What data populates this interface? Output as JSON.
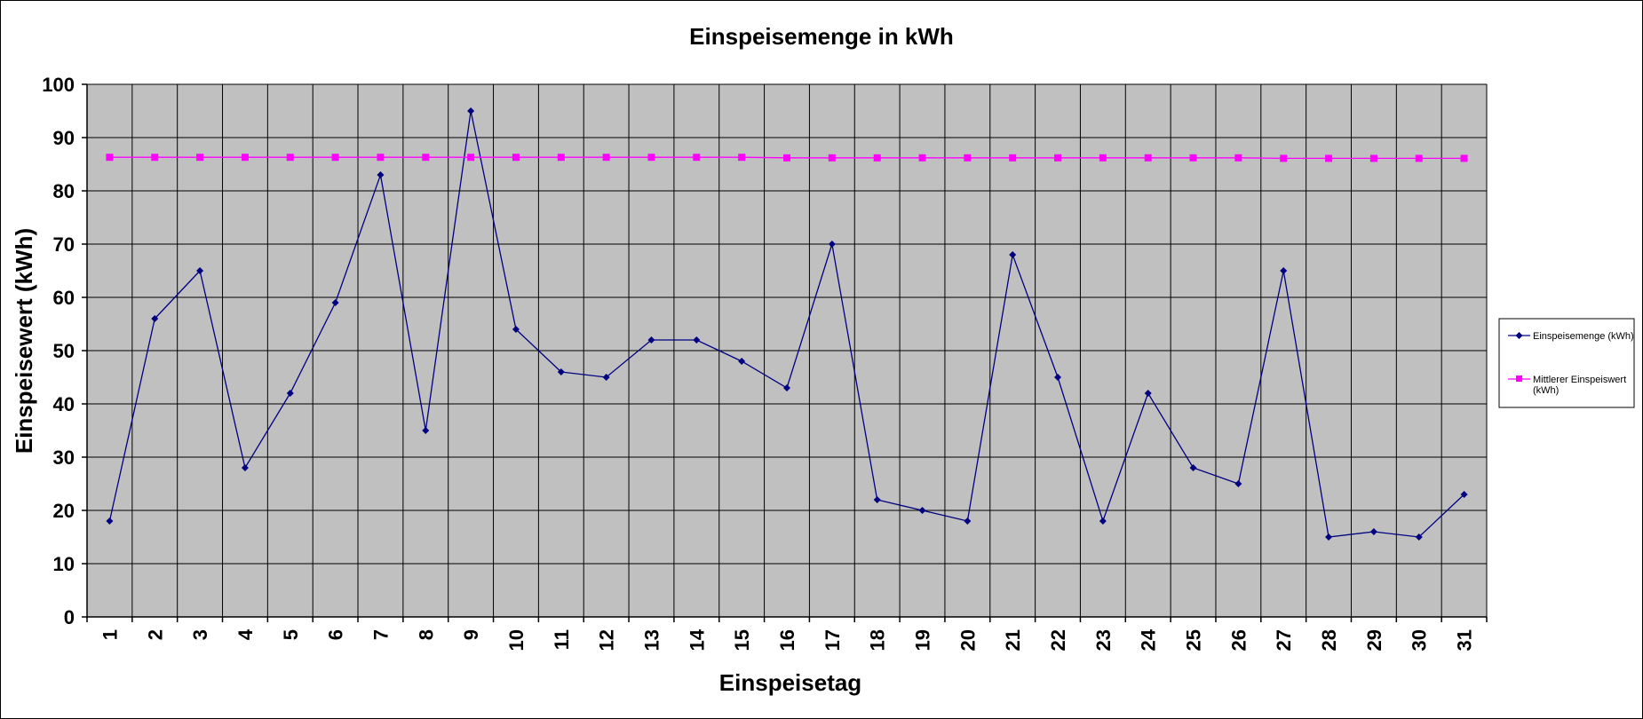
{
  "chart_data": {
    "type": "line",
    "title": "Einspeisemenge in kWh",
    "xlabel": "Einspeisetag",
    "ylabel": "Einspeisewert  (kWh)",
    "ylim": [
      0,
      100
    ],
    "yticks": [
      "0",
      "10",
      "20",
      "30",
      "40",
      "50",
      "60",
      "70",
      "80",
      "90",
      "100"
    ],
    "categories": [
      "1",
      "2",
      "3",
      "4",
      "5",
      "6",
      "7",
      "8",
      "9",
      "10",
      "11",
      "12",
      "13",
      "14",
      "15",
      "16",
      "17",
      "18",
      "19",
      "20",
      "21",
      "22",
      "23",
      "24",
      "25",
      "26",
      "27",
      "28",
      "29",
      "30",
      "31"
    ],
    "grid": true,
    "legend_position": "right",
    "plot_background": "#c0c0c0",
    "series": [
      {
        "name": "Einspeisemenge (kWh)",
        "color": "#000080",
        "marker": "diamond",
        "values": [
          18,
          56,
          65,
          28,
          42,
          59,
          83,
          35,
          95,
          54,
          46,
          45,
          52,
          52,
          48,
          43,
          70,
          22,
          20,
          18,
          68,
          45,
          18,
          42,
          28,
          25,
          65,
          15,
          16,
          15,
          23
        ]
      },
      {
        "name_lines": [
          "Mittlerer Einspeiswert",
          "(kWh)"
        ],
        "color": "#ff00ff",
        "marker": "square",
        "values": [
          86.3,
          86.3,
          86.3,
          86.3,
          86.3,
          86.3,
          86.3,
          86.3,
          86.3,
          86.3,
          86.3,
          86.3,
          86.3,
          86.3,
          86.3,
          86.2,
          86.2,
          86.2,
          86.2,
          86.2,
          86.2,
          86.2,
          86.2,
          86.2,
          86.2,
          86.2,
          86.1,
          86.1,
          86.1,
          86.1,
          86.1
        ]
      }
    ]
  }
}
